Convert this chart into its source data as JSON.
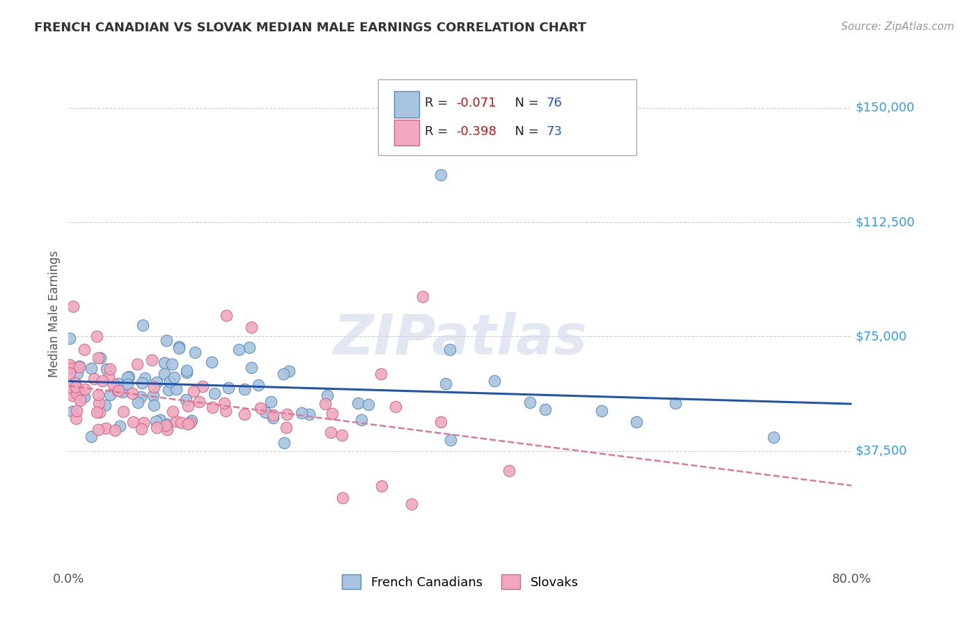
{
  "title": "FRENCH CANADIAN VS SLOVAK MEDIAN MALE EARNINGS CORRELATION CHART",
  "source_text": "Source: ZipAtlas.com",
  "ylabel": "Median Male Earnings",
  "watermark": "ZIPatlas",
  "xlim": [
    0.0,
    0.8
  ],
  "ylim": [
    0,
    165000
  ],
  "yticks": [
    37500,
    75000,
    112500,
    150000
  ],
  "ytick_labels": [
    "$37,500",
    "$75,000",
    "$112,500",
    "$150,000"
  ],
  "xticks": [
    0.0,
    0.8
  ],
  "xtick_labels": [
    "0.0%",
    "80.0%"
  ],
  "fc_color": "#a8c4e0",
  "fc_edge": "#5588bb",
  "fc_line_color": "#2255aa",
  "sk_color": "#f0a8be",
  "sk_edge": "#cc6688",
  "sk_line_color": "#dd7799",
  "background_color": "#ffffff",
  "grid_color": "#cccccc",
  "ytick_color": "#3399ff",
  "legend_N_color": "#2255cc",
  "legend_R_color": "#cc1111",
  "fc_R": -0.071,
  "fc_N": 76,
  "sk_R": -0.398,
  "sk_N": 73
}
